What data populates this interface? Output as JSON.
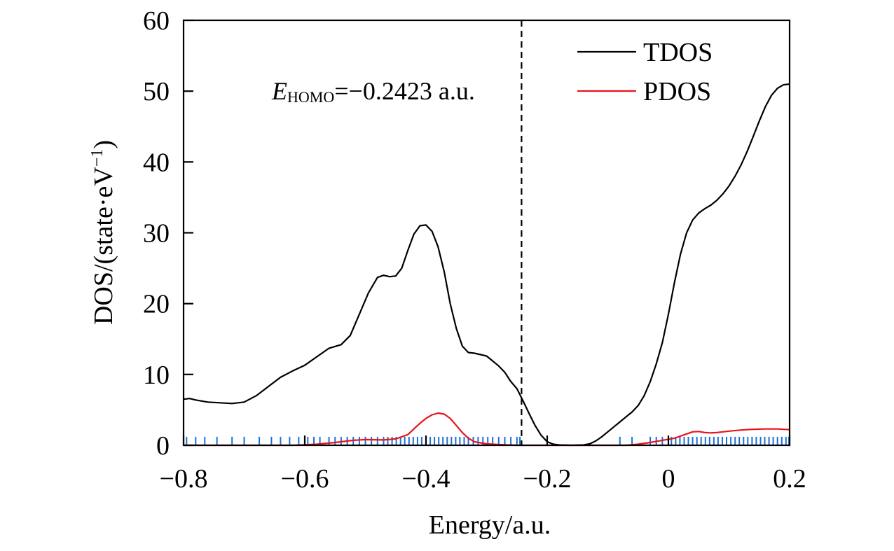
{
  "chart_data": {
    "type": "line",
    "xlabel": "Energy/a.u.",
    "ylabel_main": "DOS/(state·eV",
    "ylabel_sup": "−1",
    "ylabel_close": ")",
    "xlim": [
      -0.8,
      0.2
    ],
    "ylim": [
      0,
      60
    ],
    "x_ticks": [
      -0.8,
      -0.6,
      -0.4,
      -0.2,
      0,
      0.2
    ],
    "x_tick_labels": [
      "−0.8",
      "−0.6",
      "−0.4",
      "−0.2",
      "0",
      "0.2"
    ],
    "y_ticks": [
      0,
      10,
      20,
      30,
      40,
      50,
      60
    ],
    "y_tick_labels": [
      "0",
      "10",
      "20",
      "30",
      "40",
      "50",
      "60"
    ],
    "grid": false,
    "legend_position": "top-right",
    "homo_line_x": -0.2423,
    "annotation": {
      "symbol": "E",
      "subscript": "HOMO",
      "value_text": "=−0.2423 a.u."
    },
    "series": [
      {
        "name": "TDOS",
        "color": "#000000",
        "points": [
          [
            -0.8,
            6.5
          ],
          [
            -0.79,
            6.6
          ],
          [
            -0.78,
            6.4
          ],
          [
            -0.76,
            6.1
          ],
          [
            -0.74,
            6.0
          ],
          [
            -0.72,
            5.9
          ],
          [
            -0.7,
            6.1
          ],
          [
            -0.68,
            7.0
          ],
          [
            -0.66,
            8.3
          ],
          [
            -0.64,
            9.6
          ],
          [
            -0.62,
            10.5
          ],
          [
            -0.6,
            11.3
          ],
          [
            -0.58,
            12.5
          ],
          [
            -0.56,
            13.7
          ],
          [
            -0.54,
            14.2
          ],
          [
            -0.525,
            15.5
          ],
          [
            -0.51,
            18.5
          ],
          [
            -0.495,
            21.5
          ],
          [
            -0.48,
            23.7
          ],
          [
            -0.47,
            24.0
          ],
          [
            -0.46,
            23.8
          ],
          [
            -0.45,
            23.9
          ],
          [
            -0.44,
            25.0
          ],
          [
            -0.43,
            27.5
          ],
          [
            -0.42,
            29.8
          ],
          [
            -0.41,
            31.0
          ],
          [
            -0.4,
            31.1
          ],
          [
            -0.39,
            30.2
          ],
          [
            -0.38,
            28.0
          ],
          [
            -0.37,
            24.5
          ],
          [
            -0.36,
            20.0
          ],
          [
            -0.35,
            16.5
          ],
          [
            -0.34,
            14.0
          ],
          [
            -0.33,
            13.1
          ],
          [
            -0.32,
            13.0
          ],
          [
            -0.3,
            12.6
          ],
          [
            -0.29,
            11.9
          ],
          [
            -0.28,
            11.2
          ],
          [
            -0.27,
            10.3
          ],
          [
            -0.26,
            9.0
          ],
          [
            -0.25,
            8.0
          ],
          [
            -0.24,
            6.3
          ],
          [
            -0.23,
            4.5
          ],
          [
            -0.22,
            2.8
          ],
          [
            -0.21,
            1.4
          ],
          [
            -0.2,
            0.5
          ],
          [
            -0.19,
            0.15
          ],
          [
            -0.18,
            0.05
          ],
          [
            -0.16,
            0.0
          ],
          [
            -0.14,
            0.05
          ],
          [
            -0.13,
            0.2
          ],
          [
            -0.12,
            0.6
          ],
          [
            -0.11,
            1.2
          ],
          [
            -0.1,
            1.9
          ],
          [
            -0.09,
            2.6
          ],
          [
            -0.08,
            3.3
          ],
          [
            -0.07,
            4.0
          ],
          [
            -0.06,
            4.7
          ],
          [
            -0.05,
            5.6
          ],
          [
            -0.04,
            7.0
          ],
          [
            -0.03,
            9.0
          ],
          [
            -0.02,
            11.5
          ],
          [
            -0.01,
            14.5
          ],
          [
            0.0,
            18.5
          ],
          [
            0.01,
            23.0
          ],
          [
            0.02,
            27.0
          ],
          [
            0.03,
            30.0
          ],
          [
            0.04,
            31.8
          ],
          [
            0.05,
            32.8
          ],
          [
            0.06,
            33.4
          ],
          [
            0.07,
            33.9
          ],
          [
            0.08,
            34.6
          ],
          [
            0.09,
            35.5
          ],
          [
            0.1,
            36.6
          ],
          [
            0.11,
            38.0
          ],
          [
            0.12,
            39.6
          ],
          [
            0.13,
            41.5
          ],
          [
            0.14,
            43.6
          ],
          [
            0.15,
            45.8
          ],
          [
            0.16,
            47.8
          ],
          [
            0.17,
            49.4
          ],
          [
            0.18,
            50.4
          ],
          [
            0.19,
            50.9
          ],
          [
            0.2,
            51.0
          ]
        ]
      },
      {
        "name": "PDOS",
        "color": "#e8141c",
        "points": [
          [
            -0.8,
            0.0
          ],
          [
            -0.62,
            0.0
          ],
          [
            -0.58,
            0.15
          ],
          [
            -0.55,
            0.4
          ],
          [
            -0.52,
            0.7
          ],
          [
            -0.5,
            0.8
          ],
          [
            -0.47,
            0.75
          ],
          [
            -0.45,
            0.9
          ],
          [
            -0.43,
            1.5
          ],
          [
            -0.42,
            2.3
          ],
          [
            -0.41,
            3.1
          ],
          [
            -0.4,
            3.8
          ],
          [
            -0.39,
            4.3
          ],
          [
            -0.38,
            4.55
          ],
          [
            -0.37,
            4.4
          ],
          [
            -0.36,
            3.8
          ],
          [
            -0.35,
            2.8
          ],
          [
            -0.34,
            1.8
          ],
          [
            -0.33,
            1.0
          ],
          [
            -0.32,
            0.5
          ],
          [
            -0.3,
            0.2
          ],
          [
            -0.28,
            0.1
          ],
          [
            -0.25,
            0.0
          ],
          [
            -0.07,
            0.0
          ],
          [
            -0.05,
            0.15
          ],
          [
            -0.03,
            0.4
          ],
          [
            -0.01,
            0.7
          ],
          [
            0.01,
            1.0
          ],
          [
            0.03,
            1.6
          ],
          [
            0.04,
            1.9
          ],
          [
            0.05,
            1.95
          ],
          [
            0.06,
            1.8
          ],
          [
            0.07,
            1.75
          ],
          [
            0.08,
            1.8
          ],
          [
            0.1,
            2.0
          ],
          [
            0.12,
            2.15
          ],
          [
            0.14,
            2.25
          ],
          [
            0.16,
            2.3
          ],
          [
            0.18,
            2.3
          ],
          [
            0.2,
            2.2
          ]
        ]
      }
    ],
    "eigenvalues": {
      "color": "#1f6fd6",
      "height": 0.9,
      "x": [
        -0.795,
        -0.78,
        -0.765,
        -0.745,
        -0.72,
        -0.7,
        -0.675,
        -0.655,
        -0.64,
        -0.625,
        -0.61,
        -0.595,
        -0.585,
        -0.575,
        -0.56,
        -0.55,
        -0.54,
        -0.53,
        -0.52,
        -0.51,
        -0.5,
        -0.49,
        -0.48,
        -0.47,
        -0.463,
        -0.456,
        -0.449,
        -0.442,
        -0.435,
        -0.428,
        -0.421,
        -0.414,
        -0.407,
        -0.4,
        -0.393,
        -0.386,
        -0.379,
        -0.372,
        -0.365,
        -0.358,
        -0.351,
        -0.344,
        -0.337,
        -0.33,
        -0.322,
        -0.314,
        -0.306,
        -0.298,
        -0.29,
        -0.28,
        -0.27,
        -0.26,
        -0.25,
        -0.245,
        -0.08,
        -0.06,
        -0.03,
        -0.02,
        -0.01,
        0.005,
        0.012,
        0.019,
        0.026,
        0.033,
        0.04,
        0.047,
        0.054,
        0.061,
        0.068,
        0.075,
        0.082,
        0.089,
        0.096,
        0.103,
        0.11,
        0.117,
        0.124,
        0.131,
        0.138,
        0.145,
        0.152,
        0.159,
        0.166,
        0.173,
        0.18,
        0.187,
        0.194,
        0.199
      ]
    }
  }
}
